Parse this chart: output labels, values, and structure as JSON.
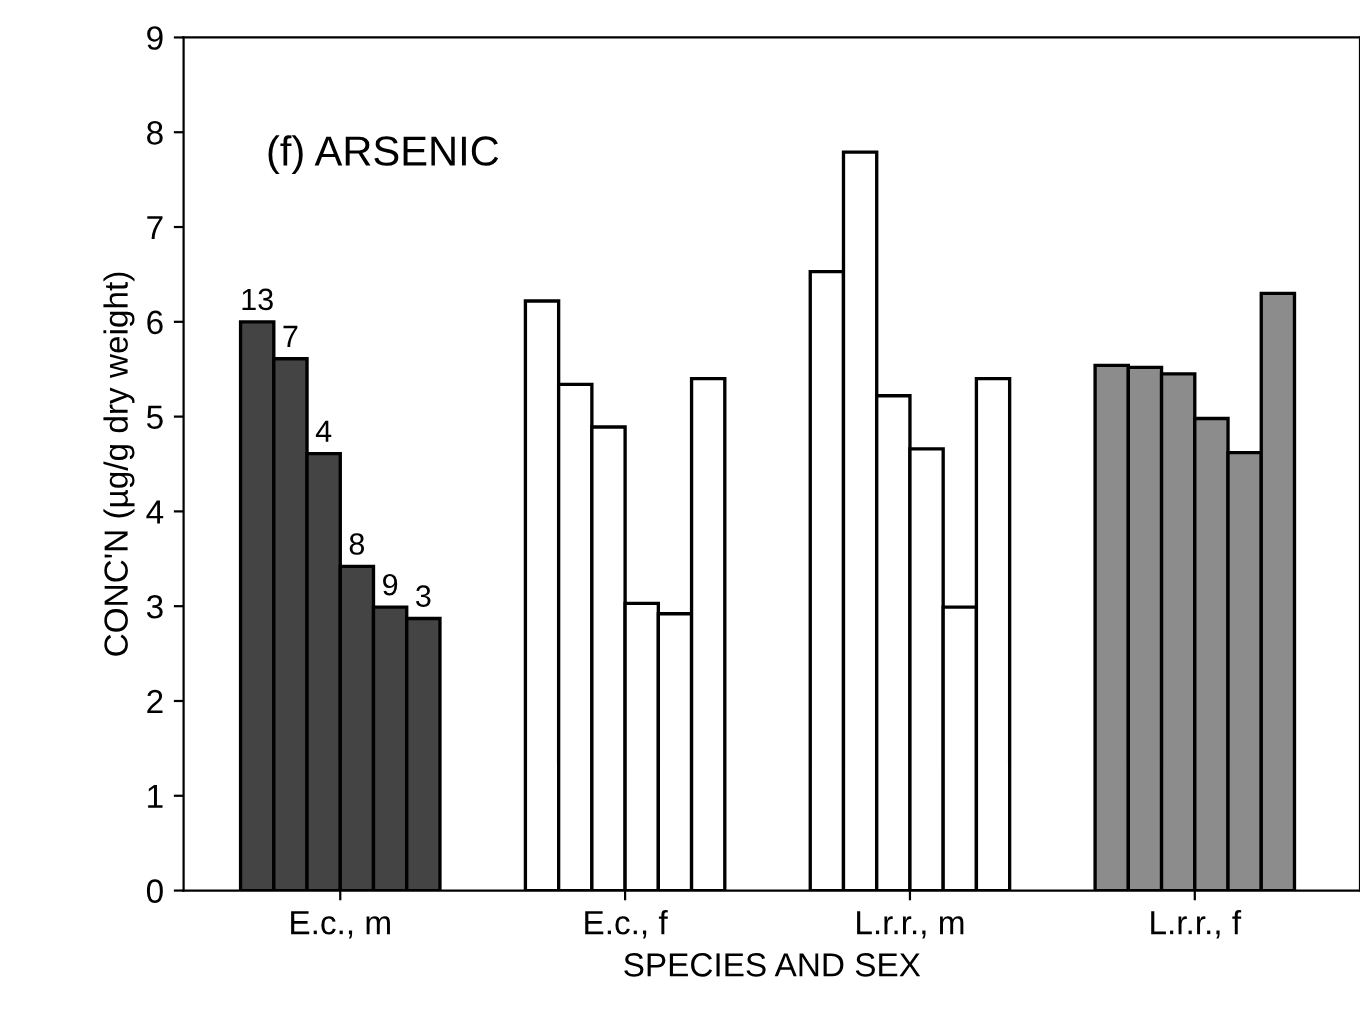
{
  "chart_data": {
    "type": "bar",
    "xlabel": "SPECIES AND SEX",
    "ylabel": "CONC'N (µg/g dry weight)",
    "annotations": [
      "(f) ARSENIC",
      "13",
      "7",
      "4",
      "8",
      "9",
      "3"
    ],
    "categories": [
      "E.c., m",
      "E.c., f",
      "L.r.r., m",
      "L.r.r., f"
    ],
    "series": [
      {
        "colors": [
          "#444444",
          "#ffffff",
          "#ffffff",
          "#8c8c8c"
        ],
        "values": [
          6.0,
          6.22,
          6.53,
          5.54
        ]
      },
      {
        "colors": [
          "#444444",
          "#ffffff",
          "#ffffff",
          "#8c8c8c"
        ],
        "values": [
          5.61,
          5.34,
          7.79,
          5.52
        ]
      },
      {
        "colors": [
          "#444444",
          "#ffffff",
          "#ffffff",
          "#8c8c8c"
        ],
        "values": [
          4.61,
          4.89,
          5.22,
          5.45
        ]
      },
      {
        "colors": [
          "#444444",
          "#ffffff",
          "#ffffff",
          "#8c8c8c"
        ],
        "values": [
          3.42,
          3.03,
          4.66,
          4.98
        ]
      },
      {
        "colors": [
          "#444444",
          "#ffffff",
          "#ffffff",
          "#8c8c8c"
        ],
        "values": [
          2.99,
          2.92,
          2.99,
          4.62
        ]
      },
      {
        "colors": [
          "#444444",
          "#ffffff",
          "#ffffff",
          "#8c8c8c"
        ],
        "values": [
          2.87,
          5.4,
          5.4,
          6.3
        ]
      }
    ],
    "ylim": [
      0,
      9
    ],
    "yticks": [
      0,
      1,
      2,
      3,
      4,
      5,
      6,
      7,
      8,
      9
    ],
    "grid": false,
    "legend": false
  }
}
